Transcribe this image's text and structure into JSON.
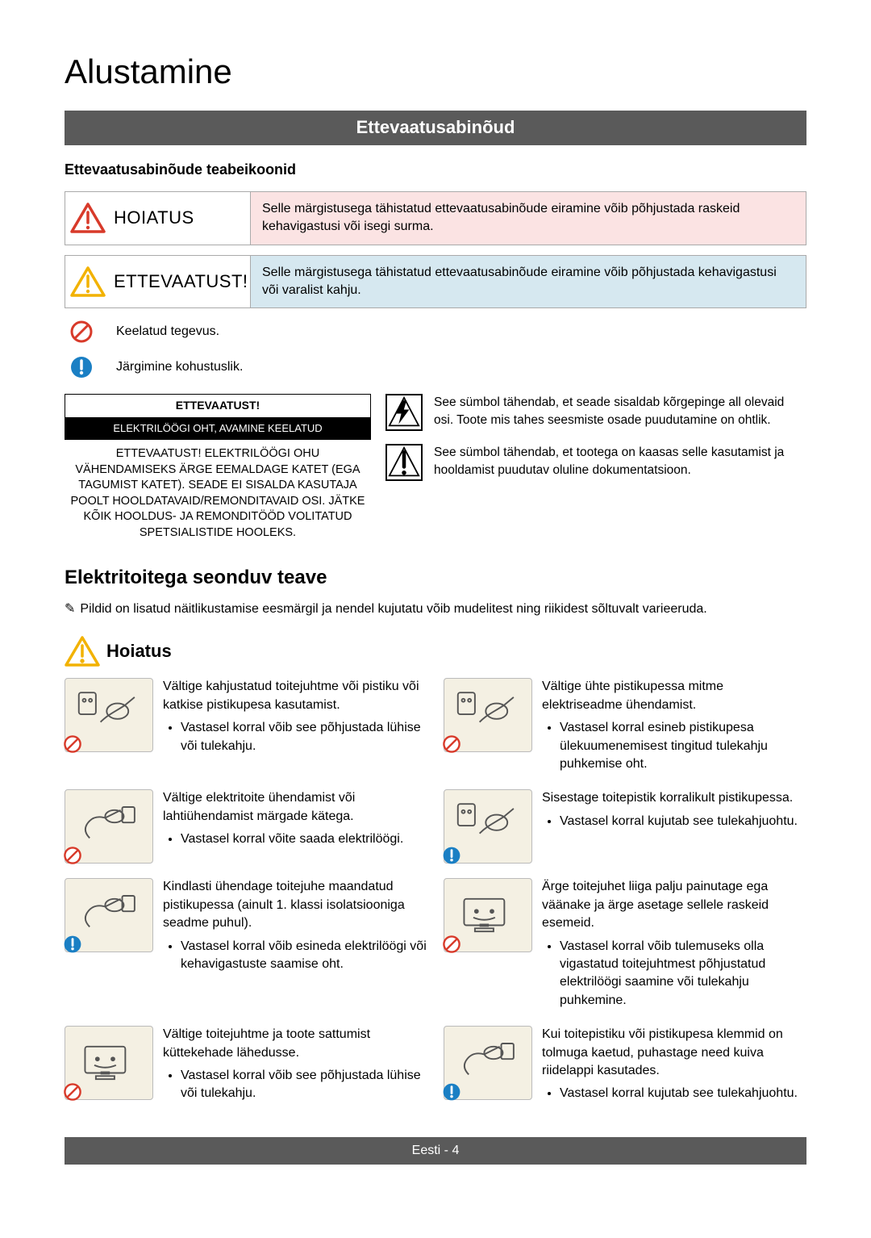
{
  "page_title": "Alustamine",
  "section_banner": "Ettevaatusabinõud",
  "icons_subhead": "Ettevaatusabinõude teabeikoonid",
  "warn_boxes": [
    {
      "label": "HOIATUS",
      "bg": "bg-pink",
      "tri_color": "#d83a2a",
      "text": "Selle märgistusega tähistatud ettevaatusabinõude eiramine võib põhjustada raskeid kehavigastusi või isegi surma."
    },
    {
      "label": "ETTEVAATUST!",
      "bg": "bg-blue",
      "tri_color": "#f2b200",
      "text": "Selle märgistusega tähistatud ettevaatusabinõude eiramine võib põhjustada kehavigastusi või varalist kahju."
    }
  ],
  "legend": [
    {
      "kind": "prohibit",
      "text": "Keelatud tegevus."
    },
    {
      "kind": "info",
      "text": "Järgimine kohustuslik."
    }
  ],
  "caution_panel": {
    "top": "ETTEVAATUST!",
    "black": "ELEKTRILÖÖGI OHT, AVAMINE KEELATUD",
    "body": "ETTEVAATUST! ELEKTRILÖÖGI OHU VÄHENDAMISEKS ÄRGE EEMALDAGE KATET (EGA TAGUMIST KATET). SEADE EI SISALDA KASUTAJA POOLT HOOLDATAVAID/REMONDITAVAID OSI. JÄTKE KÕIK HOOLDUS- JA REMONDITÖÖD VOLITATUD SPETSIALISTIDE HOOLEKS."
  },
  "symbol_legend": [
    {
      "glyph": "bolt",
      "text": "See sümbol tähendab, et seade sisaldab kõrgepinge all olevaid osi. Toote mis tahes seesmiste osade puudutamine on ohtlik."
    },
    {
      "glyph": "excl",
      "text": "See sümbol tähendab, et tootega on kaasas selle kasutamist ja hooldamist puudutav oluline dokumentatsioon."
    }
  ],
  "section_heading": "Elektritoitega seonduv teave",
  "note_line": "Pildid on lisatud näitlikustamise eesmärgil ja nendel kujutatu võib mudelitest ning riikidest sõltuvalt varieeruda.",
  "hoiatus_heading": "Hoiatus",
  "items": [
    {
      "badge": "prohibit",
      "title": "Vältige kahjustatud toitejuhtme või pistiku või katkise pistikupesa kasutamist.",
      "bullets": [
        "Vastasel korral võib see põhjustada lühise või tulekahju."
      ]
    },
    {
      "badge": "prohibit",
      "title": "Vältige ühte pistikupessa mitme elektriseadme ühendamist.",
      "bullets": [
        "Vastasel korral esineb pistikupesa ülekuumenemisest tingitud tulekahju puhkemise oht."
      ]
    },
    {
      "badge": "prohibit",
      "title": "Vältige elektritoite ühendamist või lahtiühendamist märgade kätega.",
      "bullets": [
        "Vastasel korral võite saada elektrilöögi."
      ]
    },
    {
      "badge": "info",
      "title": "Sisestage toitepistik korralikult pistikupessa.",
      "bullets": [
        "Vastasel korral kujutab see tulekahjuohtu."
      ]
    },
    {
      "badge": "info",
      "title": "Kindlasti ühendage toitejuhe maandatud pistikupessa (ainult 1. klassi isolatsiooniga seadme puhul).",
      "bullets": [
        "Vastasel korral võib esineda elektrilöögi või kehavigastuste saamise oht."
      ]
    },
    {
      "badge": "prohibit",
      "title": "Ärge toitejuhet liiga palju painutage ega väänake ja ärge asetage sellele raskeid esemeid.",
      "bullets": [
        "Vastasel korral võib tulemuseks olla vigastatud toitejuhtmest põhjustatud elektrilöögi saamine või tulekahju puhkemine."
      ]
    },
    {
      "badge": "prohibit",
      "title": "Vältige toitejuhtme ja toote sattumist küttekehade lähedusse.",
      "bullets": [
        "Vastasel korral võib see põhjustada lühise või tulekahju."
      ]
    },
    {
      "badge": "info",
      "title": "Kui toitepistiku või pistikupesa klemmid on tolmuga kaetud, puhastage need kuiva riidelappi kasutades.",
      "bullets": [
        "Vastasel korral kujutab see tulekahjuohtu."
      ]
    }
  ],
  "footer": {
    "lang": "Eesti",
    "sep": " - ",
    "num": "4"
  },
  "colors": {
    "banner_bg": "#5a5a5a",
    "pink_bg": "#fbe3e3",
    "blue_bg": "#d6e8f0",
    "thumb_bg": "#f4f0e3",
    "prohibit": "#d83a2a",
    "info": "#1a7fc4",
    "tri_warn_yellow": "#f2b200"
  }
}
